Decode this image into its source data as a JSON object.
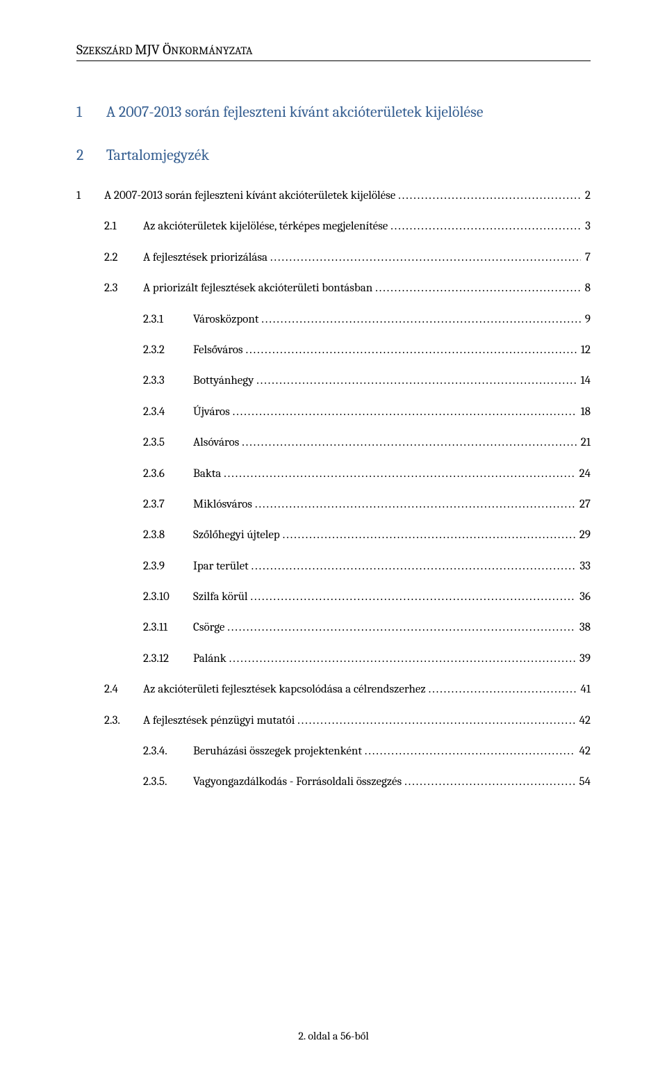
{
  "running_head": {
    "caps": [
      "S",
      "MJV Ö"
    ],
    "smalls": [
      "ZEKSZÁRD ",
      "NKORMÁNYZATA"
    ]
  },
  "headings": {
    "h1a_num": "1",
    "h1a_text": "A 2007-2013 során fejleszteni kívánt akcióterületek kijelölése",
    "h1b_num": "2",
    "h1b_text": "Tartalomjegyzék"
  },
  "toc": [
    {
      "level": 1,
      "num": "1",
      "label": "A 2007-2013 során fejleszteni kívánt akcióterületek kijelölése",
      "page": "2"
    },
    {
      "level": 2,
      "num": "2.1",
      "label": "Az akcióterületek kijelölése, térképes megjelenítése",
      "page": "3"
    },
    {
      "level": 2,
      "num": "2.2",
      "label": "A fejlesztések priorizálása",
      "page": "7"
    },
    {
      "level": 2,
      "num": "2.3",
      "label": "A priorizált fejlesztések akcióterületi bontásban",
      "page": "8"
    },
    {
      "level": 3,
      "num": "2.3.1",
      "label": "Városközpont",
      "page": "9"
    },
    {
      "level": 3,
      "num": "2.3.2",
      "label": "Felsőváros",
      "page": "12"
    },
    {
      "level": 3,
      "num": "2.3.3",
      "label": "Bottyánhegy",
      "page": "14"
    },
    {
      "level": 3,
      "num": "2.3.4",
      "label": "Újváros",
      "page": "18"
    },
    {
      "level": 3,
      "num": "2.3.5",
      "label": "Alsóváros",
      "page": "21"
    },
    {
      "level": 3,
      "num": "2.3.6",
      "label": "Bakta",
      "page": "24"
    },
    {
      "level": 3,
      "num": "2.3.7",
      "label": "Miklósváros",
      "page": "27"
    },
    {
      "level": 3,
      "num": "2.3.8",
      "label": "Szőlőhegyi újtelep",
      "page": "29"
    },
    {
      "level": 3,
      "num": "2.3.9",
      "label": "Ipar terület",
      "page": "33"
    },
    {
      "level": 3,
      "num": "2.3.10",
      "label": "Szilfa körül",
      "page": "36"
    },
    {
      "level": 3,
      "num": "2.3.11",
      "label": "Csörge",
      "page": "38"
    },
    {
      "level": 3,
      "num": "2.3.12",
      "label": "Palánk",
      "page": "39"
    },
    {
      "level": 2,
      "num": "2.4",
      "label": "Az akcióterületi fejlesztések kapcsolódása a célrendszerhez",
      "page": "41"
    },
    {
      "level": 2,
      "num": "2.3.",
      "label": "A fejlesztések pénzügyi mutatói",
      "page": "42"
    },
    {
      "level": 3,
      "num": "2.3.4.",
      "label": "Beruházási összegek projektenként",
      "page": "42"
    },
    {
      "level": 3,
      "num": "2.3.5.",
      "label": "Vagyongazdálkodás - Forrásoldali összegzés",
      "page": "54"
    }
  ],
  "footer": "2. oldal a 56-ből"
}
